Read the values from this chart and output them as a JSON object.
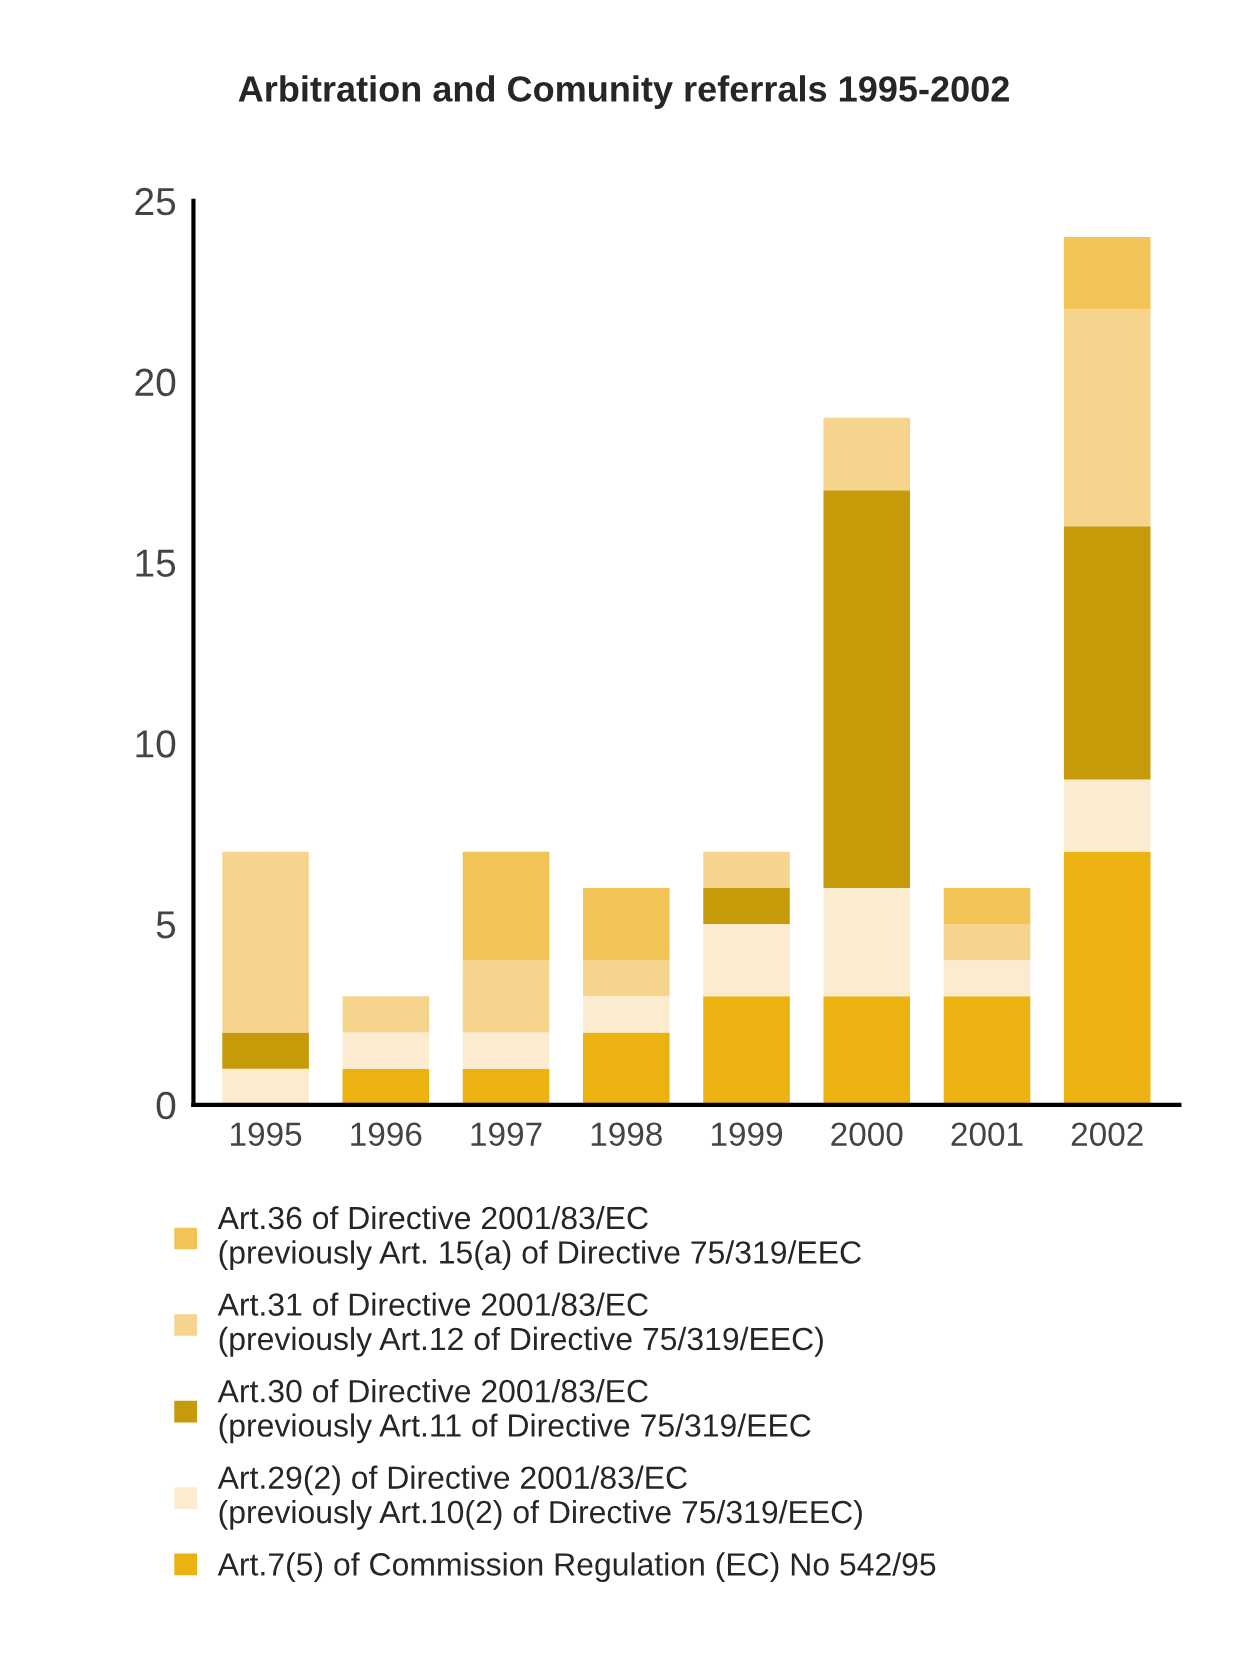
{
  "chart_data": {
    "type": "bar",
    "title": "Arbitration and Comunity referrals 1995-2002",
    "categories": [
      "1995",
      "1996",
      "1997",
      "1998",
      "1999",
      "2000",
      "2001",
      "2002"
    ],
    "stacked": true,
    "series": [
      {
        "name": "Art.7(5) of Commission Regulation (EC) No 542/95",
        "color": "#ebb212",
        "values": [
          0,
          1,
          1,
          2,
          3,
          3,
          3,
          7
        ]
      },
      {
        "name": "Art.29(2) of Directive 2001/83/EC\n(previously Art.10(2) of Directive 75/319/EEC)",
        "color": "#fbecd0",
        "values": [
          1,
          1,
          1,
          1,
          2,
          3,
          1,
          2
        ]
      },
      {
        "name": "Art.30 of Directive 2001/83/EC\n(previously Art.11 of Directive 75/319/EEC",
        "color": "#c79a09",
        "values": [
          1,
          0,
          0,
          0,
          1,
          11,
          0,
          7
        ]
      },
      {
        "name": "Art.31 of Directive 2001/83/EC\n(previously Art.12 of Directive 75/319/EEC)",
        "color": "#f6d48e",
        "values": [
          5,
          1,
          2,
          1,
          1,
          2,
          1,
          6
        ]
      },
      {
        "name": "Art.36 of Directive 2001/83/EC\n(previously Art. 15(a) of Directive 75/319/EEC",
        "color": "#f2c457",
        "values": [
          0,
          0,
          3,
          2,
          0,
          0,
          1,
          2
        ]
      }
    ],
    "ylim": [
      0,
      25
    ],
    "yticks": [
      0,
      5,
      10,
      15,
      20,
      25
    ],
    "grid": false,
    "legend": "bottom"
  }
}
